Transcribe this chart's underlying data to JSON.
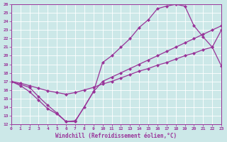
{
  "xlabel": "Windchill (Refroidissement éolien,°C)",
  "bg_color": "#cce8e8",
  "line_color": "#993399",
  "grid_color": "#b8d8d8",
  "xlim": [
    0,
    23
  ],
  "ylim": [
    12,
    26
  ],
  "xticks": [
    0,
    1,
    2,
    3,
    4,
    5,
    6,
    7,
    8,
    9,
    10,
    11,
    12,
    13,
    14,
    15,
    16,
    17,
    18,
    19,
    20,
    21,
    22,
    23
  ],
  "yticks": [
    12,
    13,
    14,
    15,
    16,
    17,
    18,
    19,
    20,
    21,
    22,
    23,
    24,
    25,
    26
  ],
  "curve_arch_x": [
    0,
    2,
    3,
    4,
    5,
    6,
    7,
    9,
    10,
    11,
    12,
    13,
    14,
    15,
    16,
    17,
    18,
    19,
    20,
    21,
    22,
    23
  ],
  "curve_arch_y": [
    17.0,
    16.3,
    15.2,
    14.2,
    13.3,
    12.3,
    12.3,
    15.8,
    19.2,
    20.0,
    21.0,
    22.0,
    23.3,
    24.2,
    25.5,
    25.8,
    26.0,
    25.8,
    23.5,
    22.2,
    21.0,
    18.8
  ],
  "curve_diag_x": [
    0,
    1,
    2,
    3,
    4,
    5,
    6,
    7,
    8,
    9,
    10,
    11,
    12,
    13,
    14,
    15,
    16,
    17,
    18,
    19,
    20,
    21,
    22,
    23
  ],
  "curve_diag_y": [
    17.0,
    16.8,
    16.5,
    16.2,
    15.9,
    15.7,
    15.5,
    15.7,
    16.0,
    16.3,
    16.7,
    17.0,
    17.4,
    17.8,
    18.2,
    18.5,
    18.9,
    19.2,
    19.6,
    20.0,
    20.3,
    20.7,
    21.0,
    23.0
  ],
  "curve_bottom_x": [
    0,
    1,
    2,
    3,
    4,
    5,
    6,
    7,
    8,
    9,
    10,
    11,
    12,
    13,
    14,
    15,
    16,
    17,
    18,
    19,
    20,
    21,
    22,
    23
  ],
  "curve_bottom_y": [
    17.0,
    16.5,
    15.8,
    14.8,
    13.8,
    13.2,
    12.3,
    12.4,
    14.0,
    15.8,
    17.0,
    17.5,
    18.0,
    18.5,
    19.0,
    19.5,
    20.0,
    20.5,
    21.0,
    21.5,
    22.0,
    22.5,
    23.0,
    23.5
  ]
}
